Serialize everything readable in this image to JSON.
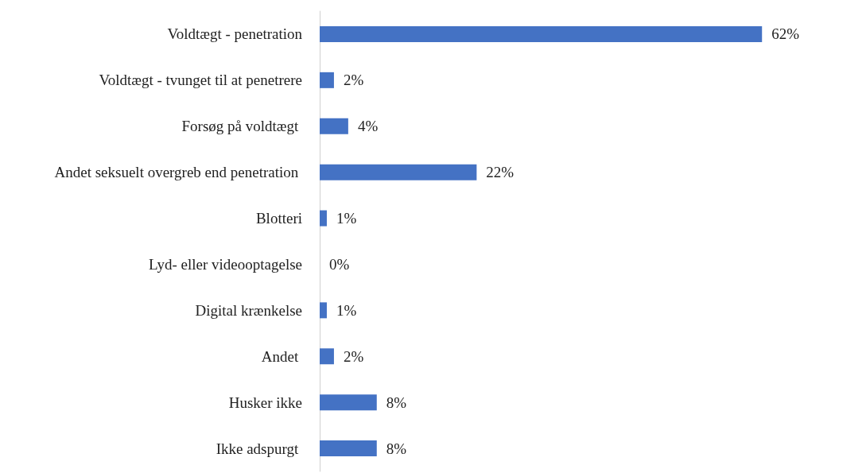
{
  "chart_data": {
    "type": "bar",
    "orientation": "horizontal",
    "categories": [
      "Voldtægt - penetration",
      "Voldtægt - tvunget til at penetrere",
      "Forsøg på voldtægt ",
      "Andet seksuelt overgreb end penetration ",
      "Blotteri",
      "Lyd- eller videooptagelse",
      "Digital krænkelse",
      "Andet ",
      "Husker ikke",
      "Ikke adspurgt "
    ],
    "values": [
      62,
      2,
      4,
      22,
      1,
      0,
      1,
      2,
      8,
      8
    ],
    "value_labels": [
      "62%",
      "2%",
      "4%",
      "22%",
      "1%",
      "0%",
      "1%",
      "2%",
      "8%",
      "8%"
    ],
    "color": "#4472c4"
  }
}
